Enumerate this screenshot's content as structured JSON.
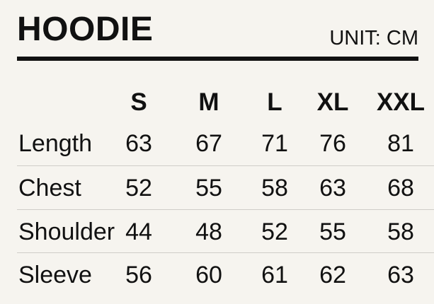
{
  "title": "HOODIE",
  "unit": "UNIT: CM",
  "sizes": [
    "S",
    "M",
    "L",
    "XL",
    "XXL"
  ],
  "rows": [
    {
      "label": "Length",
      "values": [
        "63",
        "67",
        "71",
        "76",
        "81"
      ]
    },
    {
      "label": "Chest",
      "values": [
        "52",
        "55",
        "58",
        "63",
        "68"
      ]
    },
    {
      "label": "Shoulder",
      "values": [
        "44",
        "48",
        "52",
        "55",
        "58"
      ]
    },
    {
      "label": "Sleeve",
      "values": [
        "56",
        "60",
        "61",
        "62",
        "63"
      ]
    }
  ]
}
